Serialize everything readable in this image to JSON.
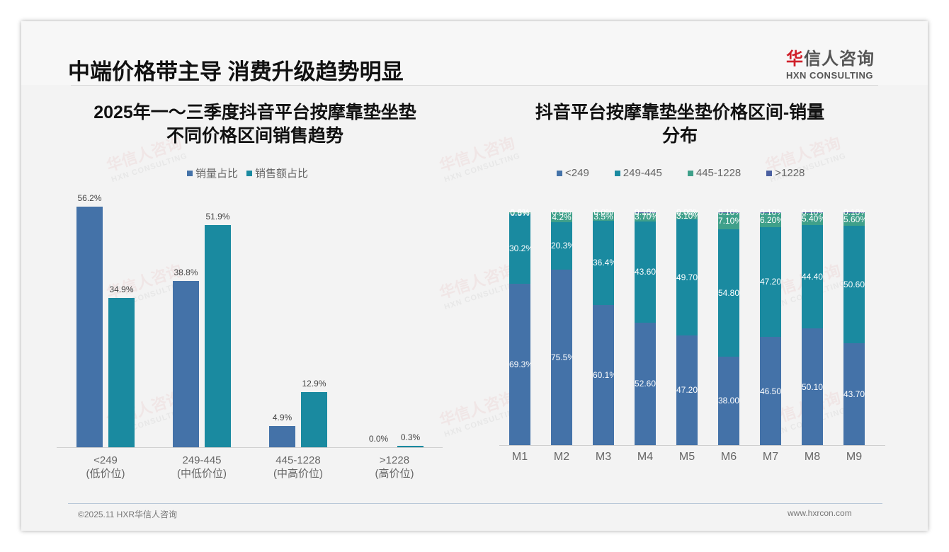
{
  "header": {
    "title": "中端价格带主导 消费升级趋势明显",
    "logo_cn_red": "华",
    "logo_cn_rest": "信人咨询",
    "logo_en": "HXN CONSULTING"
  },
  "left_chart": {
    "title_line1": "2025年一～三季度抖音平台按摩靠垫坐垫",
    "title_line2": "不同价格区间销售趋势",
    "legend": [
      "销量占比",
      "销售额占比"
    ],
    "categories": [
      {
        "range": "<249",
        "tier": "(低价位)"
      },
      {
        "range": "249-445",
        "tier": "(中低价位)"
      },
      {
        "range": "445-1228",
        "tier": "(中高价位)"
      },
      {
        "range": ">1228",
        "tier": "(高价位)"
      }
    ],
    "labels_volume": [
      "56.2%",
      "38.8%",
      "4.9%",
      "0.0%"
    ],
    "labels_sales": [
      "34.9%",
      "51.9%",
      "12.9%",
      "0.3%"
    ]
  },
  "right_chart": {
    "title_line1": "抖音平台按摩靠垫坐垫价格区间-销量",
    "title_line2": "分布",
    "legend": [
      "<249",
      "249-445",
      "445-1228",
      ">1228"
    ],
    "months": [
      "M1",
      "M2",
      "M3",
      "M4",
      "M5",
      "M6",
      "M7",
      "M8",
      "M9"
    ],
    "labels": [
      [
        "69.3%",
        "30.2%",
        "0.5%",
        "0.0%"
      ],
      [
        "75.5%",
        "20.3%",
        "4.2%",
        "0.0%"
      ],
      [
        "60.1%",
        "36.4%",
        "3.5%",
        "0.0%"
      ],
      [
        "52.60%",
        "43.60%",
        "3.70%",
        "0.10%"
      ],
      [
        "47.20%",
        "49.70%",
        "3.10%",
        "0.00%"
      ],
      [
        "38.00%",
        "54.80%",
        "7.10%",
        "0.10%"
      ],
      [
        "46.50%",
        "47.20%",
        "6.20%",
        "0.10%"
      ],
      [
        "50.10%",
        "44.40%",
        "5.40%",
        "0.10%"
      ],
      [
        "43.70%",
        "50.60%",
        "5.60%",
        "0.10%"
      ]
    ]
  },
  "colors": {
    "blue": "#4472a8",
    "teal": "#1a8aa0",
    "green": "#3fa08a",
    "purple": "#4a5fa0"
  },
  "footer": {
    "copyright": "©2025.11 HXR华信人咨询",
    "website": "www.hxrcon.com"
  },
  "chart_data": [
    {
      "type": "bar",
      "title": "2025年一～三季度抖音平台按摩靠垫坐垫不同价格区间销售趋势",
      "categories": [
        "<249 (低价位)",
        "249-445 (中低价位)",
        "445-1228 (中高价位)",
        ">1228 (高价位)"
      ],
      "series": [
        {
          "name": "销量占比",
          "values": [
            56.2,
            38.8,
            4.9,
            0.0
          ]
        },
        {
          "name": "销售额占比",
          "values": [
            34.9,
            51.9,
            12.9,
            0.3
          ]
        }
      ],
      "xlabel": "",
      "ylabel": "",
      "ylim": [
        0,
        60
      ],
      "grid": false,
      "legend_position": "top"
    },
    {
      "type": "bar",
      "stacked": true,
      "title": "抖音平台按摩靠垫坐垫价格区间-销量分布",
      "categories": [
        "M1",
        "M2",
        "M3",
        "M4",
        "M5",
        "M6",
        "M7",
        "M8",
        "M9"
      ],
      "series": [
        {
          "name": "<249",
          "values": [
            69.3,
            75.5,
            60.1,
            52.6,
            47.2,
            38.0,
            46.5,
            50.1,
            43.7
          ]
        },
        {
          "name": "249-445",
          "values": [
            30.2,
            20.3,
            36.4,
            43.6,
            49.7,
            54.8,
            47.2,
            44.4,
            50.6
          ]
        },
        {
          "name": "445-1228",
          "values": [
            0.5,
            4.2,
            3.5,
            3.7,
            3.1,
            7.1,
            6.2,
            5.4,
            5.6
          ]
        },
        {
          "name": ">1228",
          "values": [
            0.0,
            0.0,
            0.0,
            0.1,
            0.0,
            0.1,
            0.1,
            0.1,
            0.1
          ]
        }
      ],
      "xlabel": "",
      "ylabel": "",
      "ylim": [
        0,
        100
      ],
      "grid": false,
      "legend_position": "top"
    }
  ]
}
